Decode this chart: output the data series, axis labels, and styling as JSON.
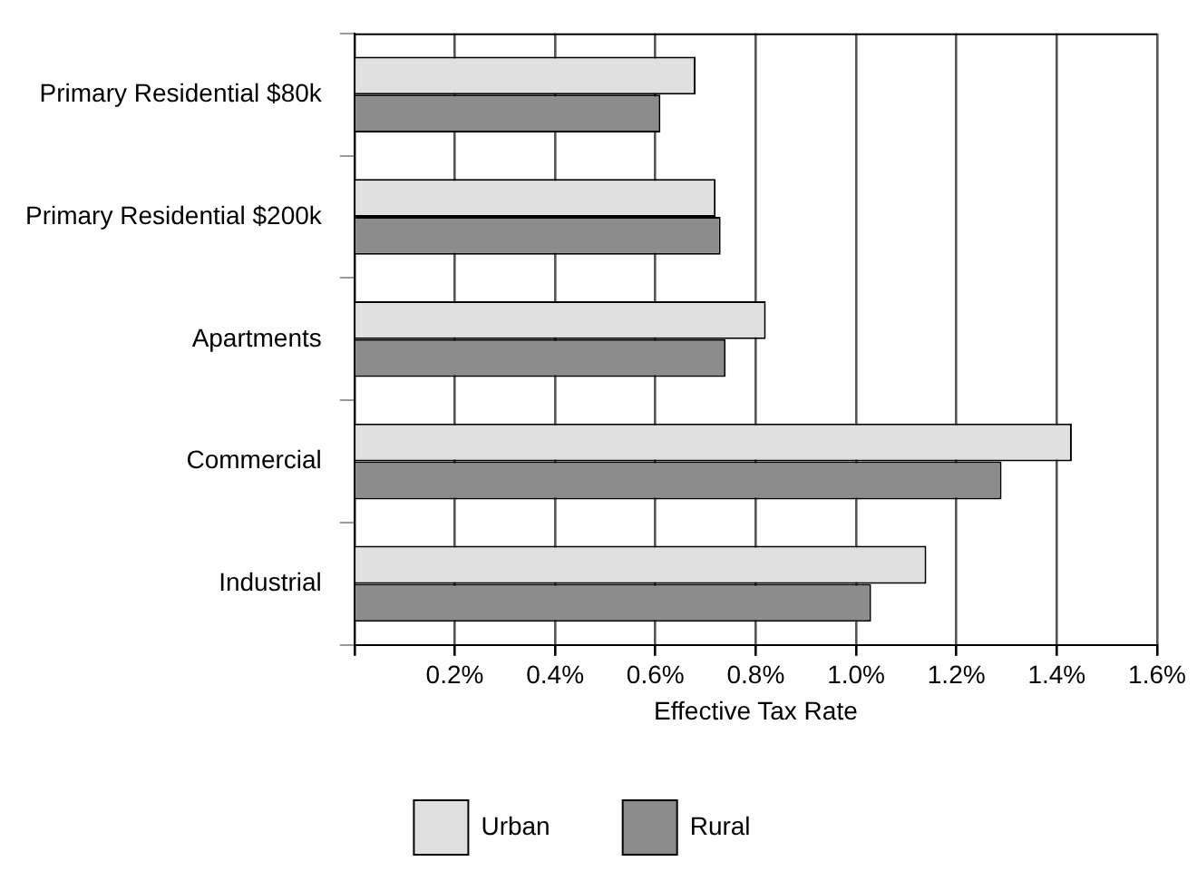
{
  "chart_data": {
    "type": "bar",
    "orientation": "horizontal",
    "xlabel": "Effective Tax Rate",
    "categories": [
      "Primary Residential $80k",
      "Primary Residential $200k",
      "Apartments",
      "Commercial",
      "Industrial"
    ],
    "series": [
      {
        "name": "Urban",
        "color": "#e0e0e0",
        "values": [
          0.68,
          0.72,
          0.82,
          1.43,
          1.14
        ]
      },
      {
        "name": "Rural",
        "color": "#8c8c8c",
        "values": [
          0.61,
          0.73,
          0.74,
          1.29,
          1.03
        ]
      }
    ],
    "xlim": [
      0,
      1.6
    ],
    "xticks": [
      {
        "value": 0,
        "label": null
      },
      {
        "value": 0.2,
        "label": "0.2%"
      },
      {
        "value": 0.4,
        "label": "0.4%"
      },
      {
        "value": 0.6,
        "label": "0.6%"
      },
      {
        "value": 0.8,
        "label": "0.8%"
      },
      {
        "value": 1.0,
        "label": "1.0%"
      },
      {
        "value": 1.2,
        "label": "1.2%"
      },
      {
        "value": 1.4,
        "label": "1.4%"
      },
      {
        "value": 1.6,
        "label": "1.6%"
      }
    ],
    "grid": "x",
    "legend": "bottom"
  }
}
